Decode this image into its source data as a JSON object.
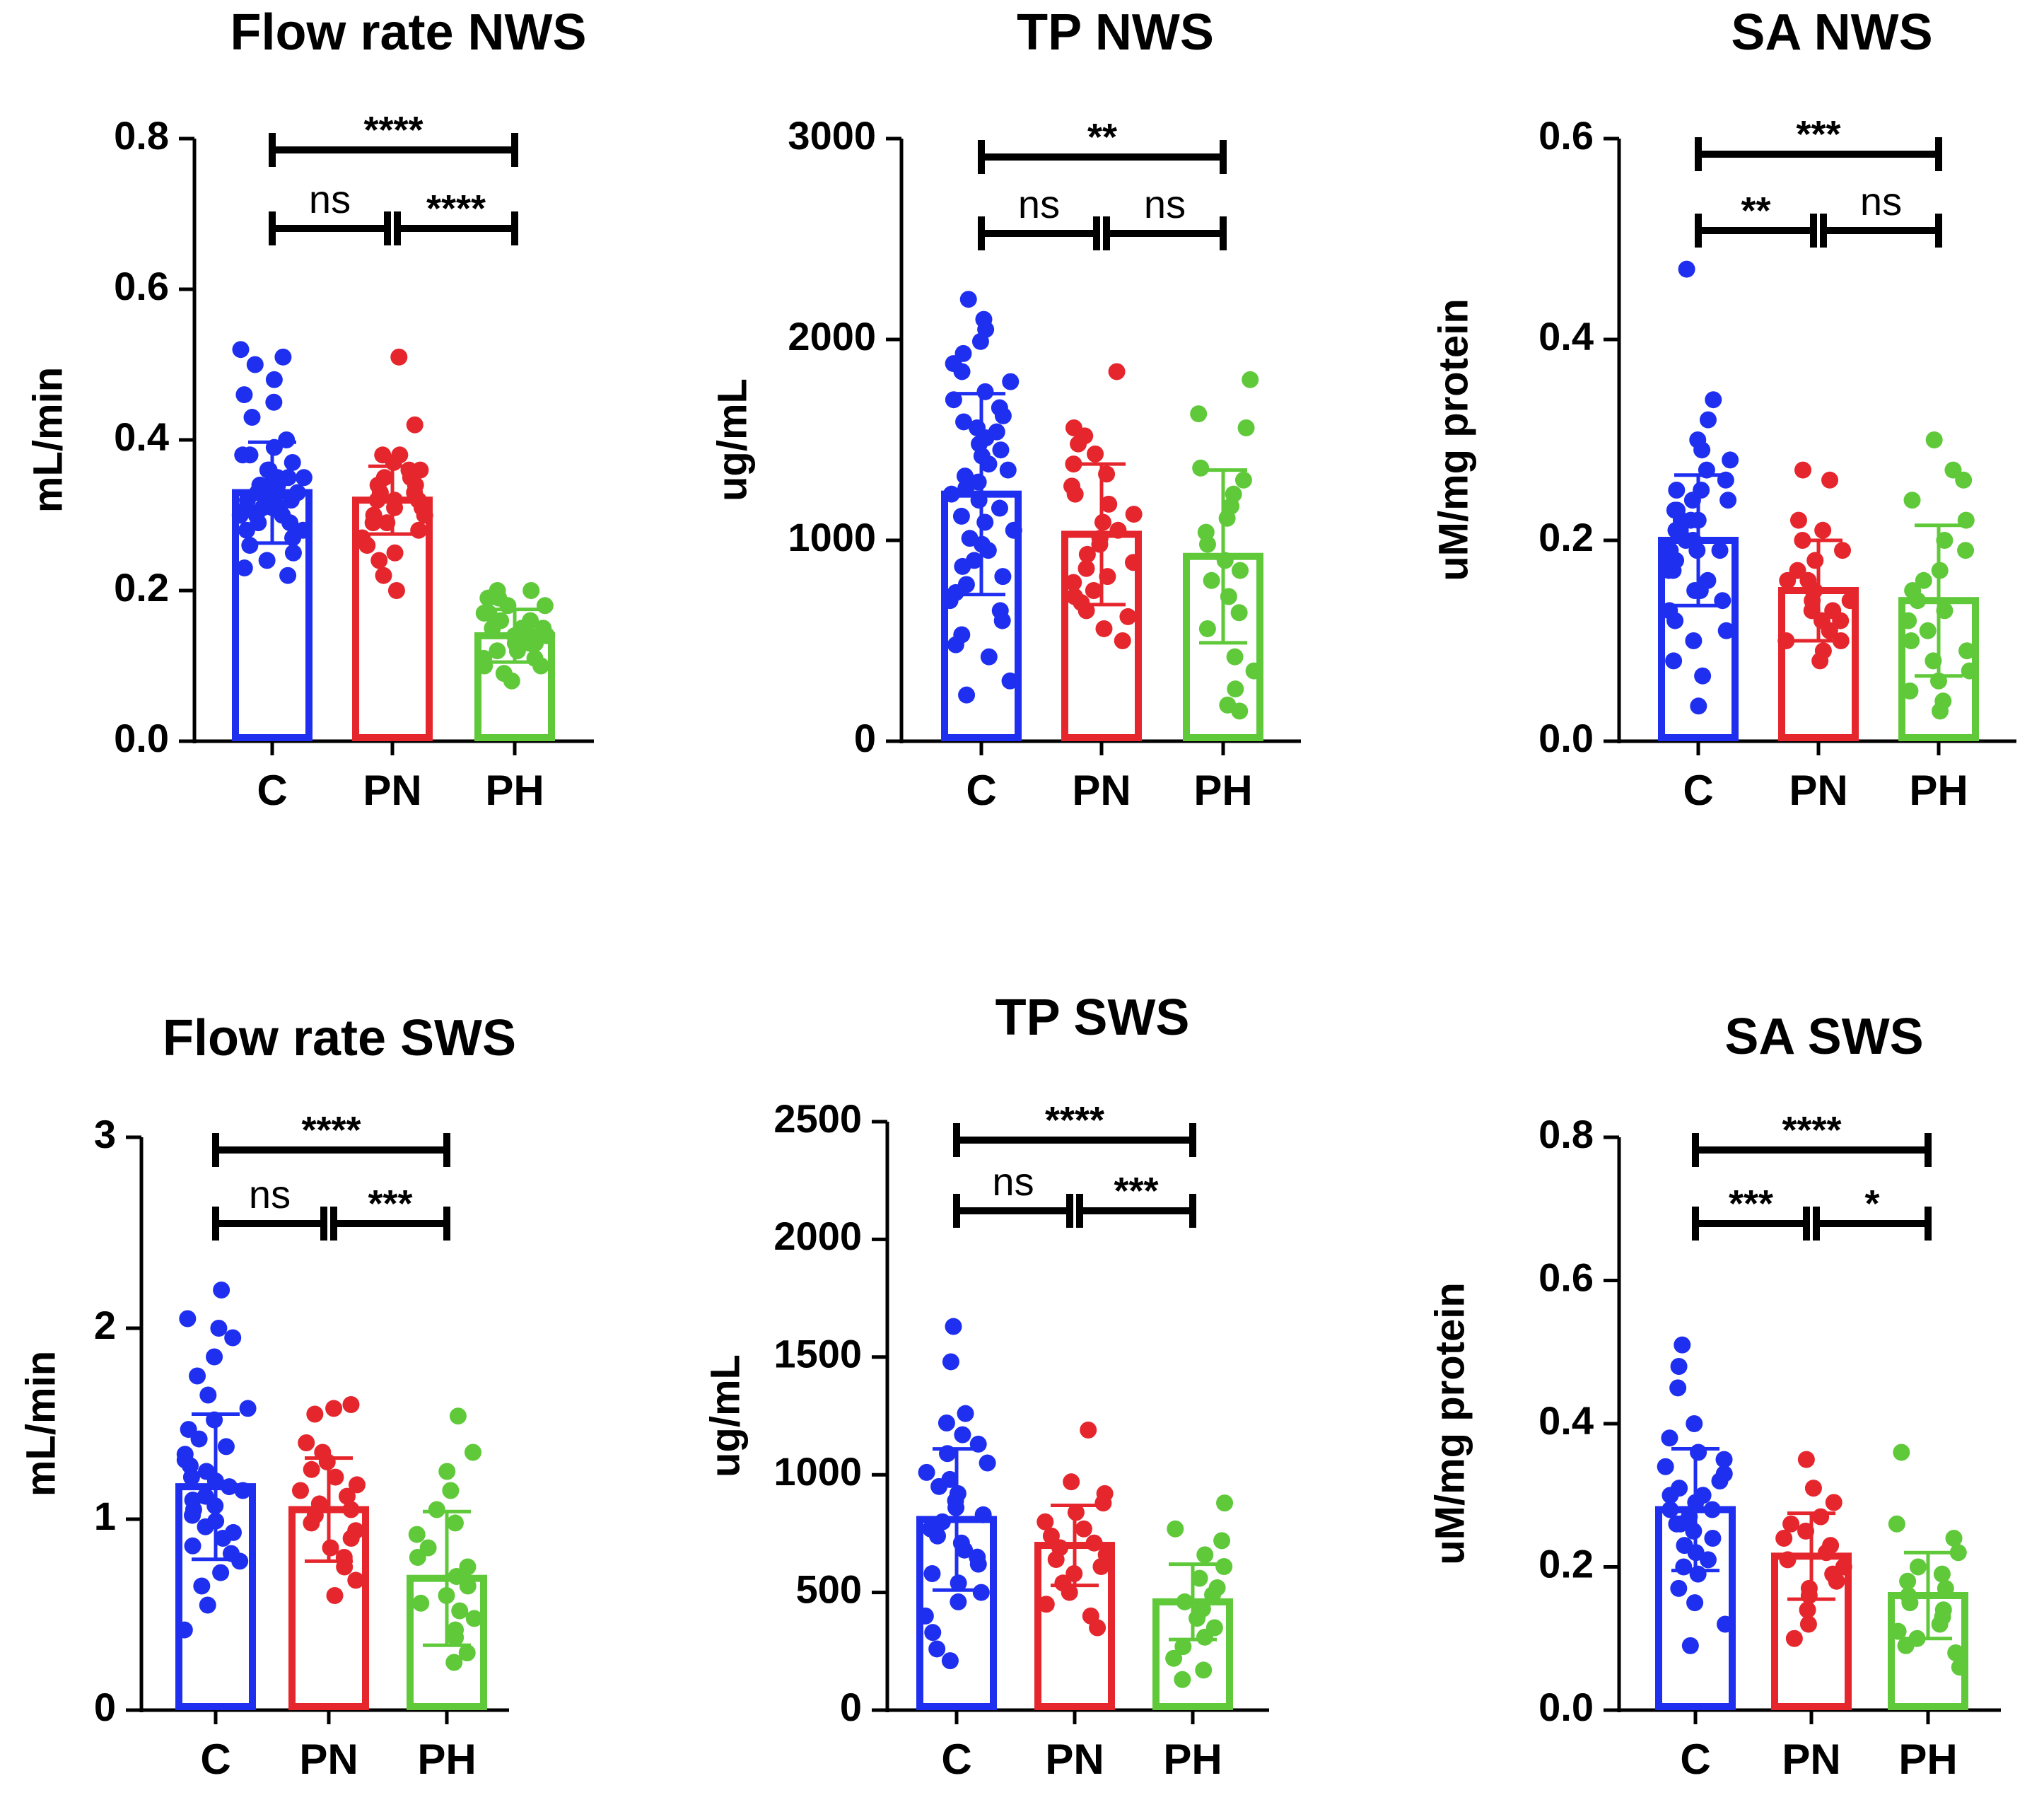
{
  "figure": {
    "bar_colors": {
      "C": "#1f2ff0",
      "PN": "#e5262d",
      "PH": "#5fc93a"
    }
  },
  "chart_data": [
    {
      "type": "bar",
      "title": "Flow rate NWS",
      "ylabel": "mL/min",
      "categories": [
        "C",
        "PN",
        "PH"
      ],
      "values": [
        0.33,
        0.32,
        0.14
      ],
      "error": [
        0.067,
        0.045,
        0.035
      ],
      "ylim": [
        0,
        0.8
      ],
      "yticks": [
        "0.0",
        "0.2",
        "0.4",
        "0.6",
        "0.8"
      ],
      "points": [
        [
          0.22,
          0.23,
          0.24,
          0.25,
          0.26,
          0.27,
          0.28,
          0.28,
          0.29,
          0.29,
          0.3,
          0.3,
          0.3,
          0.31,
          0.31,
          0.31,
          0.31,
          0.32,
          0.32,
          0.32,
          0.32,
          0.33,
          0.33,
          0.33,
          0.33,
          0.33,
          0.34,
          0.34,
          0.34,
          0.34,
          0.35,
          0.35,
          0.35,
          0.36,
          0.36,
          0.37,
          0.38,
          0.38,
          0.39,
          0.4,
          0.43,
          0.45,
          0.46,
          0.48,
          0.5,
          0.51,
          0.52
        ],
        [
          0.2,
          0.22,
          0.24,
          0.25,
          0.26,
          0.27,
          0.28,
          0.29,
          0.29,
          0.3,
          0.3,
          0.31,
          0.31,
          0.32,
          0.32,
          0.32,
          0.33,
          0.33,
          0.34,
          0.34,
          0.35,
          0.35,
          0.36,
          0.36,
          0.37,
          0.38,
          0.38,
          0.42,
          0.51
        ],
        [
          0.08,
          0.09,
          0.1,
          0.1,
          0.11,
          0.11,
          0.12,
          0.12,
          0.13,
          0.13,
          0.13,
          0.14,
          0.14,
          0.14,
          0.15,
          0.15,
          0.15,
          0.16,
          0.16,
          0.17,
          0.17,
          0.18,
          0.18,
          0.19,
          0.19,
          0.2,
          0.2
        ]
      ],
      "brackets": [
        {
          "from": 0,
          "to": 2,
          "label": "****",
          "level": 2
        },
        {
          "from": 0,
          "to": 1,
          "label": "ns",
          "level": 1
        },
        {
          "from": 1,
          "to": 2,
          "label": "****",
          "level": 1
        }
      ]
    },
    {
      "type": "bar",
      "title": "TP NWS",
      "ylabel": "ug/mL",
      "categories": [
        "C",
        "PN",
        "PH"
      ],
      "values": [
        1230,
        1030,
        920
      ],
      "error": [
        500,
        350,
        430
      ],
      "ylim": [
        0,
        3000
      ],
      "yticks": [
        "0",
        "1000",
        "2000",
        "3000"
      ],
      "points": [
        [
          230,
          300,
          420,
          480,
          530,
          600,
          650,
          700,
          740,
          780,
          820,
          870,
          900,
          950,
          980,
          1010,
          1050,
          1090,
          1120,
          1160,
          1200,
          1230,
          1260,
          1290,
          1320,
          1350,
          1380,
          1420,
          1450,
          1480,
          1510,
          1540,
          1560,
          1590,
          1620,
          1660,
          1700,
          1740,
          1790,
          1840,
          1880,
          1930,
          1990,
          2050,
          2100,
          2200
        ],
        [
          500,
          560,
          620,
          650,
          690,
          720,
          750,
          790,
          820,
          860,
          890,
          930,
          980,
          1010,
          1050,
          1090,
          1130,
          1180,
          1230,
          1270,
          1330,
          1380,
          1430,
          1480,
          1520,
          1560,
          1840
        ],
        [
          150,
          180,
          260,
          350,
          420,
          560,
          640,
          720,
          800,
          850,
          900,
          980,
          1040,
          1110,
          1170,
          1230,
          1300,
          1360,
          1560,
          1630,
          1800
        ]
      ],
      "brackets": [
        {
          "from": 0,
          "to": 2,
          "label": "**",
          "level": 2
        },
        {
          "from": 0,
          "to": 1,
          "label": "ns",
          "level": 1
        },
        {
          "from": 1,
          "to": 2,
          "label": "ns",
          "level": 1
        }
      ]
    },
    {
      "type": "bar",
      "title": "SA NWS",
      "ylabel": "uM/mg protein",
      "categories": [
        "C",
        "PN",
        "PH"
      ],
      "values": [
        0.2,
        0.15,
        0.14
      ],
      "error": [
        0.065,
        0.05,
        0.075
      ],
      "ylim": [
        0,
        0.6
      ],
      "yticks": [
        "0.0",
        "0.2",
        "0.4",
        "0.6"
      ],
      "points": [
        [
          0.035,
          0.065,
          0.08,
          0.1,
          0.11,
          0.12,
          0.13,
          0.14,
          0.15,
          0.15,
          0.16,
          0.17,
          0.17,
          0.18,
          0.18,
          0.19,
          0.19,
          0.19,
          0.2,
          0.2,
          0.2,
          0.21,
          0.21,
          0.21,
          0.22,
          0.22,
          0.22,
          0.23,
          0.23,
          0.24,
          0.24,
          0.25,
          0.25,
          0.26,
          0.27,
          0.28,
          0.29,
          0.3,
          0.32,
          0.34,
          0.47
        ],
        [
          0.08,
          0.09,
          0.1,
          0.1,
          0.11,
          0.11,
          0.12,
          0.12,
          0.13,
          0.13,
          0.14,
          0.14,
          0.15,
          0.15,
          0.16,
          0.16,
          0.17,
          0.18,
          0.19,
          0.2,
          0.21,
          0.22,
          0.26,
          0.27
        ],
        [
          0.03,
          0.04,
          0.05,
          0.06,
          0.07,
          0.08,
          0.09,
          0.1,
          0.11,
          0.12,
          0.13,
          0.14,
          0.15,
          0.16,
          0.17,
          0.19,
          0.2,
          0.22,
          0.24,
          0.26,
          0.27,
          0.3
        ]
      ],
      "brackets": [
        {
          "from": 0,
          "to": 2,
          "label": "***",
          "level": 2
        },
        {
          "from": 0,
          "to": 1,
          "label": "**",
          "level": 1
        },
        {
          "from": 1,
          "to": 2,
          "label": "ns",
          "level": 1
        }
      ]
    },
    {
      "type": "bar",
      "title": "Flow rate SWS",
      "ylabel": "mL/min",
      "categories": [
        "C",
        "PN",
        "PH"
      ],
      "values": [
        1.17,
        1.05,
        0.69
      ],
      "error": [
        0.38,
        0.27,
        0.35
      ],
      "ylim": [
        0,
        3
      ],
      "yticks": [
        "0",
        "1",
        "2",
        "3"
      ],
      "points": [
        [
          0.42,
          0.55,
          0.65,
          0.72,
          0.78,
          0.82,
          0.86,
          0.9,
          0.93,
          0.96,
          0.99,
          1.02,
          1.05,
          1.07,
          1.1,
          1.12,
          1.15,
          1.17,
          1.2,
          1.22,
          1.25,
          1.28,
          1.31,
          1.34,
          1.38,
          1.42,
          1.47,
          1.52,
          1.58,
          1.65,
          1.75,
          1.85,
          1.95,
          2.0,
          2.05,
          2.2
        ],
        [
          0.6,
          0.68,
          0.75,
          0.8,
          0.85,
          0.9,
          0.94,
          0.98,
          1.02,
          1.05,
          1.08,
          1.12,
          1.15,
          1.18,
          1.22,
          1.26,
          1.3,
          1.35,
          1.4,
          1.55,
          1.58,
          1.6
        ],
        [
          0.25,
          0.3,
          0.38,
          0.42,
          0.48,
          0.52,
          0.56,
          0.6,
          0.65,
          0.7,
          0.75,
          0.8,
          0.85,
          0.92,
          0.98,
          1.05,
          1.15,
          1.25,
          1.35,
          1.54
        ]
      ],
      "brackets": [
        {
          "from": 0,
          "to": 2,
          "label": "****",
          "level": 2
        },
        {
          "from": 0,
          "to": 1,
          "label": "ns",
          "level": 1
        },
        {
          "from": 1,
          "to": 2,
          "label": "***",
          "level": 1
        }
      ]
    },
    {
      "type": "bar",
      "title": "TP SWS",
      "ylabel": "ug/mL",
      "categories": [
        "C",
        "PN",
        "PH"
      ],
      "values": [
        810,
        700,
        460
      ],
      "error": [
        300,
        170,
        160
      ],
      "ylim": [
        0,
        2500
      ],
      "yticks": [
        "0",
        "500",
        "1000",
        "1500",
        "2000",
        "2500"
      ],
      "points": [
        [
          210,
          260,
          330,
          400,
          460,
          500,
          540,
          580,
          620,
          650,
          680,
          710,
          740,
          770,
          800,
          830,
          860,
          890,
          920,
          950,
          980,
          1010,
          1050,
          1090,
          1130,
          1170,
          1220,
          1260,
          1480,
          1630
        ],
        [
          350,
          400,
          450,
          500,
          540,
          580,
          610,
          640,
          660,
          690,
          710,
          740,
          770,
          800,
          840,
          880,
          920,
          970,
          1190
        ],
        [
          130,
          170,
          220,
          270,
          310,
          350,
          390,
          430,
          460,
          490,
          520,
          560,
          610,
          660,
          720,
          770,
          880
        ]
      ],
      "brackets": [
        {
          "from": 0,
          "to": 2,
          "label": "****",
          "level": 2
        },
        {
          "from": 0,
          "to": 1,
          "label": "ns",
          "level": 1
        },
        {
          "from": 1,
          "to": 2,
          "label": "***",
          "level": 1
        }
      ]
    },
    {
      "type": "bar",
      "title": "SA SWS",
      "ylabel": "uM/mg protein",
      "categories": [
        "C",
        "PN",
        "PH"
      ],
      "values": [
        0.28,
        0.215,
        0.16
      ],
      "error": [
        0.085,
        0.06,
        0.06
      ],
      "ylim": [
        0,
        0.8
      ],
      "yticks": [
        "0.0",
        "0.2",
        "0.4",
        "0.6",
        "0.8"
      ],
      "points": [
        [
          0.09,
          0.12,
          0.15,
          0.17,
          0.19,
          0.2,
          0.21,
          0.22,
          0.23,
          0.24,
          0.25,
          0.26,
          0.26,
          0.27,
          0.28,
          0.28,
          0.29,
          0.3,
          0.3,
          0.31,
          0.32,
          0.33,
          0.34,
          0.35,
          0.36,
          0.38,
          0.4,
          0.45,
          0.48,
          0.51
        ],
        [
          0.1,
          0.12,
          0.14,
          0.16,
          0.17,
          0.18,
          0.19,
          0.2,
          0.21,
          0.22,
          0.23,
          0.24,
          0.25,
          0.26,
          0.27,
          0.29,
          0.31,
          0.35
        ],
        [
          0.06,
          0.08,
          0.09,
          0.1,
          0.11,
          0.12,
          0.13,
          0.14,
          0.15,
          0.16,
          0.17,
          0.18,
          0.19,
          0.2,
          0.22,
          0.24,
          0.26,
          0.36
        ]
      ],
      "brackets": [
        {
          "from": 0,
          "to": 2,
          "label": "****",
          "level": 2
        },
        {
          "from": 0,
          "to": 1,
          "label": "***",
          "level": 1
        },
        {
          "from": 1,
          "to": 2,
          "label": "*",
          "level": 1
        }
      ]
    }
  ]
}
